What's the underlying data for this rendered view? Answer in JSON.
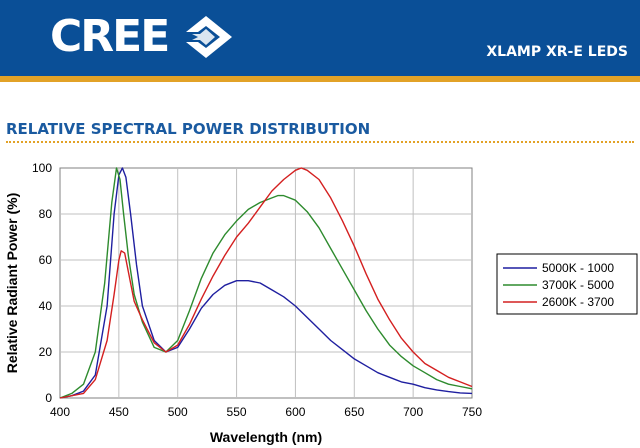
{
  "header": {
    "brand": "CREE",
    "product": "XLAMP XR-E LEDS",
    "colors": {
      "bar": "#0a4f97",
      "stripe": "#e2a227"
    }
  },
  "section": {
    "title": "RELATIVE SPECTRAL POWER DISTRIBUTION"
  },
  "chart_data": {
    "type": "line",
    "title": "",
    "xlabel": "Wavelength (nm)",
    "ylabel": "Relative Radiant Power (%)",
    "xlim": [
      400,
      750
    ],
    "ylim": [
      0,
      100
    ],
    "xticks": [
      400,
      450,
      500,
      550,
      600,
      650,
      700,
      750
    ],
    "yticks": [
      0,
      20,
      40,
      60,
      80,
      100
    ],
    "grid": true,
    "legend_position": "right",
    "series": [
      {
        "name": "5000K - 1000",
        "color": "#1f1fa0",
        "points": [
          [
            400,
            0
          ],
          [
            410,
            1
          ],
          [
            420,
            3
          ],
          [
            430,
            10
          ],
          [
            440,
            40
          ],
          [
            446,
            80
          ],
          [
            450,
            97
          ],
          [
            453,
            100
          ],
          [
            456,
            96
          ],
          [
            460,
            80
          ],
          [
            465,
            58
          ],
          [
            470,
            40
          ],
          [
            480,
            25
          ],
          [
            490,
            20
          ],
          [
            500,
            22
          ],
          [
            510,
            30
          ],
          [
            520,
            39
          ],
          [
            530,
            45
          ],
          [
            540,
            49
          ],
          [
            550,
            51
          ],
          [
            560,
            51
          ],
          [
            570,
            50
          ],
          [
            580,
            47
          ],
          [
            590,
            44
          ],
          [
            600,
            40
          ],
          [
            610,
            35
          ],
          [
            620,
            30
          ],
          [
            630,
            25
          ],
          [
            640,
            21
          ],
          [
            650,
            17
          ],
          [
            660,
            14
          ],
          [
            670,
            11
          ],
          [
            680,
            9
          ],
          [
            690,
            7
          ],
          [
            700,
            6
          ],
          [
            710,
            4.5
          ],
          [
            720,
            3.5
          ],
          [
            730,
            2.8
          ],
          [
            740,
            2.2
          ],
          [
            750,
            2
          ]
        ]
      },
      {
        "name": "3700K - 5000",
        "color": "#2e8b2e",
        "points": [
          [
            400,
            0
          ],
          [
            410,
            2
          ],
          [
            420,
            6
          ],
          [
            430,
            20
          ],
          [
            438,
            50
          ],
          [
            444,
            85
          ],
          [
            448,
            100
          ],
          [
            451,
            95
          ],
          [
            454,
            80
          ],
          [
            458,
            62
          ],
          [
            463,
            45
          ],
          [
            470,
            33
          ],
          [
            480,
            22
          ],
          [
            490,
            20
          ],
          [
            500,
            25
          ],
          [
            510,
            38
          ],
          [
            520,
            52
          ],
          [
            530,
            63
          ],
          [
            540,
            71
          ],
          [
            550,
            77
          ],
          [
            560,
            82
          ],
          [
            570,
            85
          ],
          [
            580,
            87
          ],
          [
            585,
            88
          ],
          [
            590,
            88
          ],
          [
            600,
            86
          ],
          [
            610,
            81
          ],
          [
            620,
            74
          ],
          [
            630,
            65
          ],
          [
            640,
            56
          ],
          [
            650,
            47
          ],
          [
            660,
            38
          ],
          [
            670,
            30
          ],
          [
            680,
            23
          ],
          [
            690,
            18
          ],
          [
            700,
            14
          ],
          [
            710,
            11
          ],
          [
            720,
            8
          ],
          [
            730,
            6
          ],
          [
            740,
            5
          ],
          [
            750,
            4
          ]
        ]
      },
      {
        "name": "2600K - 3700",
        "color": "#d42020",
        "points": [
          [
            400,
            0
          ],
          [
            420,
            2
          ],
          [
            430,
            8
          ],
          [
            440,
            25
          ],
          [
            446,
            45
          ],
          [
            450,
            60
          ],
          [
            452,
            64
          ],
          [
            455,
            63
          ],
          [
            458,
            55
          ],
          [
            463,
            42
          ],
          [
            470,
            34
          ],
          [
            480,
            24
          ],
          [
            490,
            20
          ],
          [
            500,
            23
          ],
          [
            510,
            32
          ],
          [
            520,
            43
          ],
          [
            530,
            53
          ],
          [
            540,
            62
          ],
          [
            550,
            70
          ],
          [
            560,
            76
          ],
          [
            570,
            83
          ],
          [
            580,
            90
          ],
          [
            590,
            95
          ],
          [
            600,
            99
          ],
          [
            605,
            100
          ],
          [
            610,
            99
          ],
          [
            620,
            95
          ],
          [
            630,
            87
          ],
          [
            640,
            77
          ],
          [
            650,
            66
          ],
          [
            660,
            54
          ],
          [
            670,
            43
          ],
          [
            680,
            34
          ],
          [
            690,
            26
          ],
          [
            700,
            20
          ],
          [
            710,
            15
          ],
          [
            720,
            12
          ],
          [
            730,
            9
          ],
          [
            740,
            7
          ],
          [
            750,
            5
          ]
        ]
      }
    ]
  }
}
